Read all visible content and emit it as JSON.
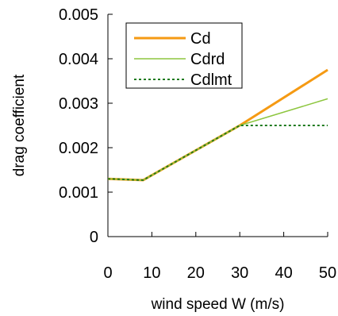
{
  "chart_data": {
    "type": "line",
    "title": "",
    "xlabel": "wind speed W (m/s)",
    "ylabel": "drag coefficient",
    "xlim": [
      0,
      50
    ],
    "ylim": [
      0,
      0.005
    ],
    "x_ticks": [
      "0",
      "10",
      "20",
      "30",
      "40",
      "50"
    ],
    "y_ticks": [
      "0",
      "0.001",
      "0.002",
      "0.003",
      "0.004",
      "0.005"
    ],
    "grid": false,
    "legend_position": "top-left",
    "series": [
      {
        "name": "Cd",
        "color": "#F59A13",
        "style": "solid",
        "x": [
          0,
          8,
          30,
          50
        ],
        "y": [
          0.0013,
          0.00127,
          0.0025,
          0.00375
        ]
      },
      {
        "name": "Cdrd",
        "color": "#8DC63F",
        "style": "solid",
        "x": [
          0,
          8,
          30,
          50
        ],
        "y": [
          0.0013,
          0.00127,
          0.0025,
          0.0031
        ]
      },
      {
        "name": "Cdlmt",
        "color": "#1E7B1E",
        "style": "dotted",
        "x": [
          0,
          8,
          30,
          50
        ],
        "y": [
          0.0013,
          0.00127,
          0.0025,
          0.0025
        ]
      }
    ]
  }
}
